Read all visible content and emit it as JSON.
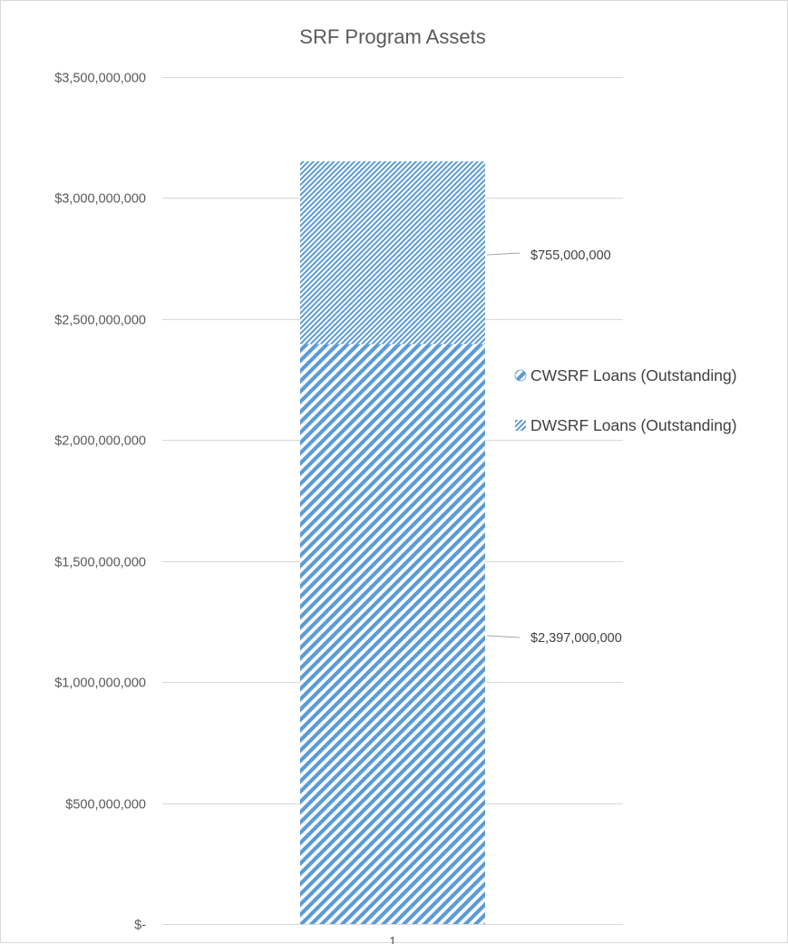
{
  "chart_data": {
    "type": "bar",
    "stacked": true,
    "title": "SRF Program Assets",
    "xlabel": "",
    "ylabel": "",
    "categories": [
      "1"
    ],
    "series": [
      {
        "name": "CWSRF Loans (Outstanding)",
        "values": [
          2397000000
        ],
        "data_label": "$2,397,000,000",
        "color": "#5b9bd5",
        "pattern": "wide-diagonal-stripe"
      },
      {
        "name": "DWSRF Loans (Outstanding)",
        "values": [
          755000000
        ],
        "data_label": "$755,000,000",
        "color": "#5b9bd5",
        "pattern": "narrow-diagonal-stripe"
      }
    ],
    "ylim": [
      0,
      3500000000
    ],
    "y_ticks": [
      {
        "value": 0,
        "label": "$-"
      },
      {
        "value": 500000000,
        "label": "$500,000,000"
      },
      {
        "value": 1000000000,
        "label": "$1,000,000,000"
      },
      {
        "value": 1500000000,
        "label": "$1,500,000,000"
      },
      {
        "value": 2000000000,
        "label": "$2,000,000,000"
      },
      {
        "value": 2500000000,
        "label": "$2,500,000,000"
      },
      {
        "value": 3000000000,
        "label": "$3,000,000,000"
      },
      {
        "value": 3500000000,
        "label": "$3,500,000,000"
      }
    ],
    "grid": true,
    "legend_position": "right"
  }
}
